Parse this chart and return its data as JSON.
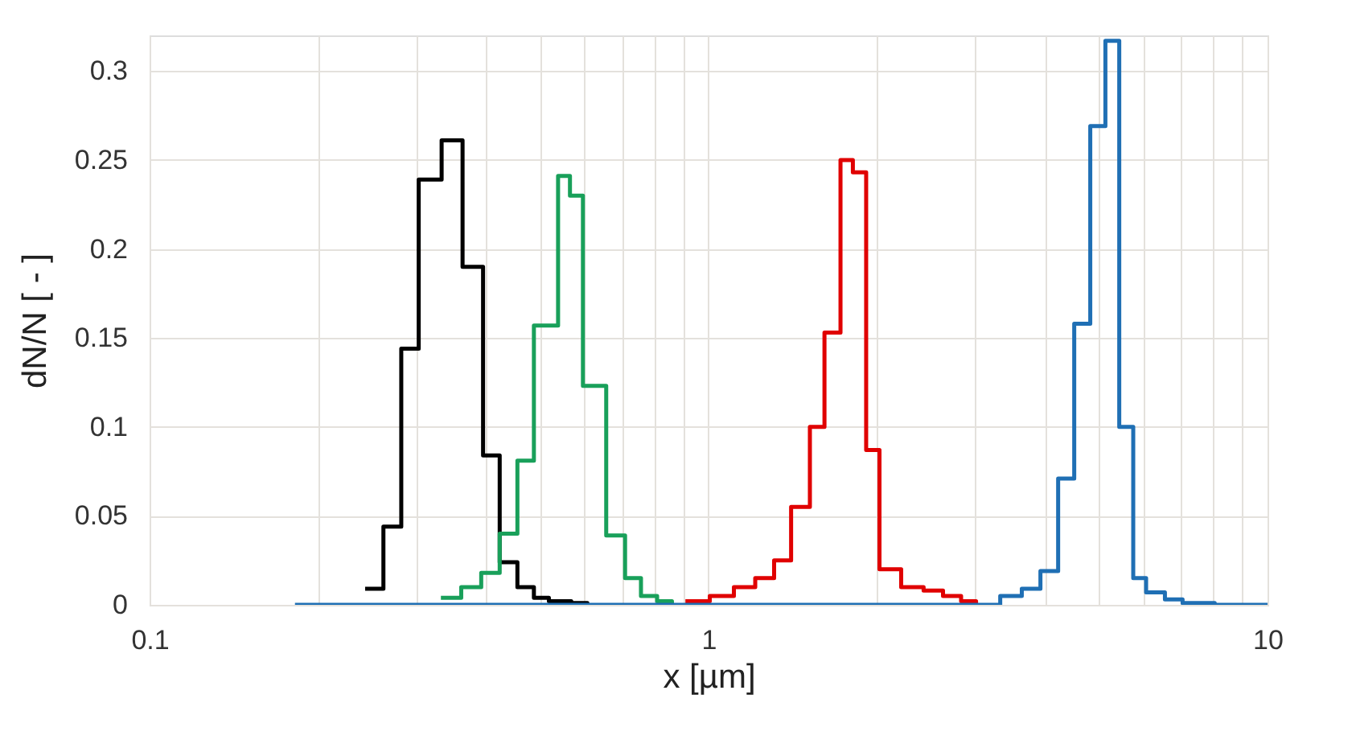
{
  "chart_data": {
    "type": "step",
    "xlabel": "x [µm]",
    "ylabel": "dN/N [ - ]",
    "log": "x",
    "grid": true,
    "line_style": "solid",
    "marker": "none",
    "xlim": [
      0.1,
      10
    ],
    "ylim": [
      0,
      0.32
    ],
    "xticks": [
      0.1,
      {
        "value": 0.2,
        "label": null
      },
      {
        "value": 0.3,
        "label": null
      },
      {
        "value": 0.4,
        "label": null
      },
      {
        "value": 0.5,
        "label": null
      },
      {
        "value": 0.6,
        "label": null
      },
      {
        "value": 0.7,
        "label": null
      },
      {
        "value": 0.8,
        "label": null
      },
      {
        "value": 0.9,
        "label": null
      },
      1,
      {
        "value": 2,
        "label": null
      },
      {
        "value": 3,
        "label": null
      },
      {
        "value": 4,
        "label": null
      },
      {
        "value": 5,
        "label": null
      },
      {
        "value": 6,
        "label": null
      },
      {
        "value": 7,
        "label": null
      },
      {
        "value": 8,
        "label": null
      },
      {
        "value": 9,
        "label": null
      },
      10
    ],
    "yticks": [
      0,
      0.05,
      0.1,
      0.15,
      0.2,
      0.25,
      0.3
    ],
    "series": [
      {
        "color": "#000000",
        "x": [
          0.243,
          0.262,
          0.282,
          0.303,
          0.333,
          0.363,
          0.395,
          0.423,
          0.455,
          0.487,
          0.518,
          0.568,
          0.607
        ],
        "values": [
          0.009,
          0.044,
          0.144,
          0.239,
          0.261,
          0.19,
          0.084,
          0.024,
          0.01,
          0.004,
          0.002,
          0.001,
          0
        ]
      },
      {
        "color": "#19a05a",
        "x": [
          0.332,
          0.361,
          0.392,
          0.423,
          0.455,
          0.487,
          0.538,
          0.565,
          0.596,
          0.656,
          0.709,
          0.757,
          0.809,
          0.86
        ],
        "values": [
          0.004,
          0.01,
          0.018,
          0.04,
          0.081,
          0.157,
          0.241,
          0.23,
          0.123,
          0.039,
          0.015,
          0.005,
          0.002,
          0
        ]
      },
      {
        "color": "#e00000",
        "x": [
          0.909,
          1.005,
          1.11,
          1.212,
          1.31,
          1.405,
          1.518,
          1.612,
          1.722,
          1.812,
          1.914,
          2.022,
          2.211,
          2.425,
          2.627,
          2.83,
          3.01
        ],
        "values": [
          0.002,
          0.005,
          0.01,
          0.015,
          0.025,
          0.055,
          0.1,
          0.153,
          0.25,
          0.243,
          0.087,
          0.02,
          0.01,
          0.008,
          0.005,
          0.002,
          0
        ]
      },
      {
        "color": "#1f6fb4",
        "x": [
          0.182,
          3.325,
          3.634,
          3.924,
          4.221,
          4.51,
          4.818,
          5.128,
          5.429,
          5.751,
          6.064,
          6.553,
          7.047,
          8.045,
          10
        ],
        "values": [
          0,
          0.005,
          0.009,
          0.019,
          0.071,
          0.158,
          0.269,
          0.317,
          0.1,
          0.015,
          0.007,
          0.003,
          0.001,
          0,
          0
        ]
      }
    ]
  }
}
